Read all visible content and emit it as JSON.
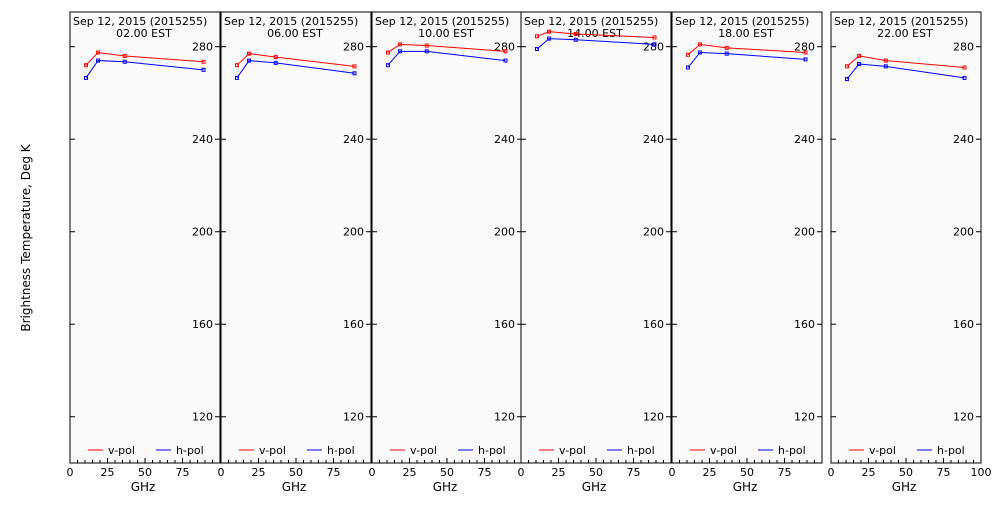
{
  "chart_data": {
    "type": "line",
    "ylabel": "Brightness Temperature, Deg K",
    "xlabel": "GHz",
    "xlim": [
      0,
      100
    ],
    "ylim": [
      100,
      295
    ],
    "x_ticks": [
      0,
      25,
      50,
      75,
      100
    ],
    "x_tick_labels": [
      "0",
      "25",
      "50",
      "75",
      "100"
    ],
    "y_ticks": [
      120,
      160,
      200,
      240,
      280
    ],
    "grid": false,
    "legend_position": "bottom",
    "colors": {
      "v_pol": "#ff0000",
      "h_pol": "#0000ff",
      "panel_bg": "#fafafa",
      "frame": "#000000"
    },
    "x": [
      10.65,
      18.7,
      36.5,
      89.0
    ],
    "panels": [
      {
        "title_line1": "Sep 12, 2015 (2015255)",
        "title_line2": "02.00 EST",
        "series": [
          {
            "name": "v-pol",
            "values": [
              272.0,
              277.5,
              276.0,
              273.5
            ]
          },
          {
            "name": "h-pol",
            "values": [
              266.5,
              274.0,
              273.5,
              270.0
            ]
          }
        ]
      },
      {
        "title_line1": "Sep 12, 2015 (2015255)",
        "title_line2": "06.00 EST",
        "series": [
          {
            "name": "v-pol",
            "values": [
              272.0,
              277.0,
              275.5,
              271.5
            ]
          },
          {
            "name": "h-pol",
            "values": [
              266.5,
              274.0,
              273.0,
              268.5
            ]
          }
        ]
      },
      {
        "title_line1": "Sep 12, 2015 (2015255)",
        "title_line2": "10.00 EST",
        "series": [
          {
            "name": "v-pol",
            "values": [
              277.5,
              281.0,
              280.5,
              278.0
            ]
          },
          {
            "name": "h-pol",
            "values": [
              272.0,
              278.0,
              278.0,
              274.0
            ]
          }
        ]
      },
      {
        "title_line1": "Sep 12, 2015 (2015255)",
        "title_line2": "14.00 EST",
        "series": [
          {
            "name": "v-pol",
            "values": [
              284.5,
              286.5,
              285.5,
              284.0
            ]
          },
          {
            "name": "h-pol",
            "values": [
              279.0,
              283.5,
              283.0,
              281.0
            ]
          }
        ]
      },
      {
        "title_line1": "Sep 12, 2015 (2015255)",
        "title_line2": "18.00 EST",
        "series": [
          {
            "name": "v-pol",
            "values": [
              276.5,
              281.0,
              279.5,
              277.5
            ]
          },
          {
            "name": "h-pol",
            "values": [
              271.0,
              277.5,
              277.0,
              274.5
            ]
          }
        ]
      },
      {
        "title_line1": "Sep 12, 2015 (2015255)",
        "title_line2": "22.00 EST",
        "series": [
          {
            "name": "v-pol",
            "values": [
              271.5,
              276.0,
              274.0,
              271.0
            ]
          },
          {
            "name": "h-pol",
            "values": [
              266.0,
              272.5,
              271.5,
              266.5
            ]
          }
        ]
      }
    ]
  }
}
